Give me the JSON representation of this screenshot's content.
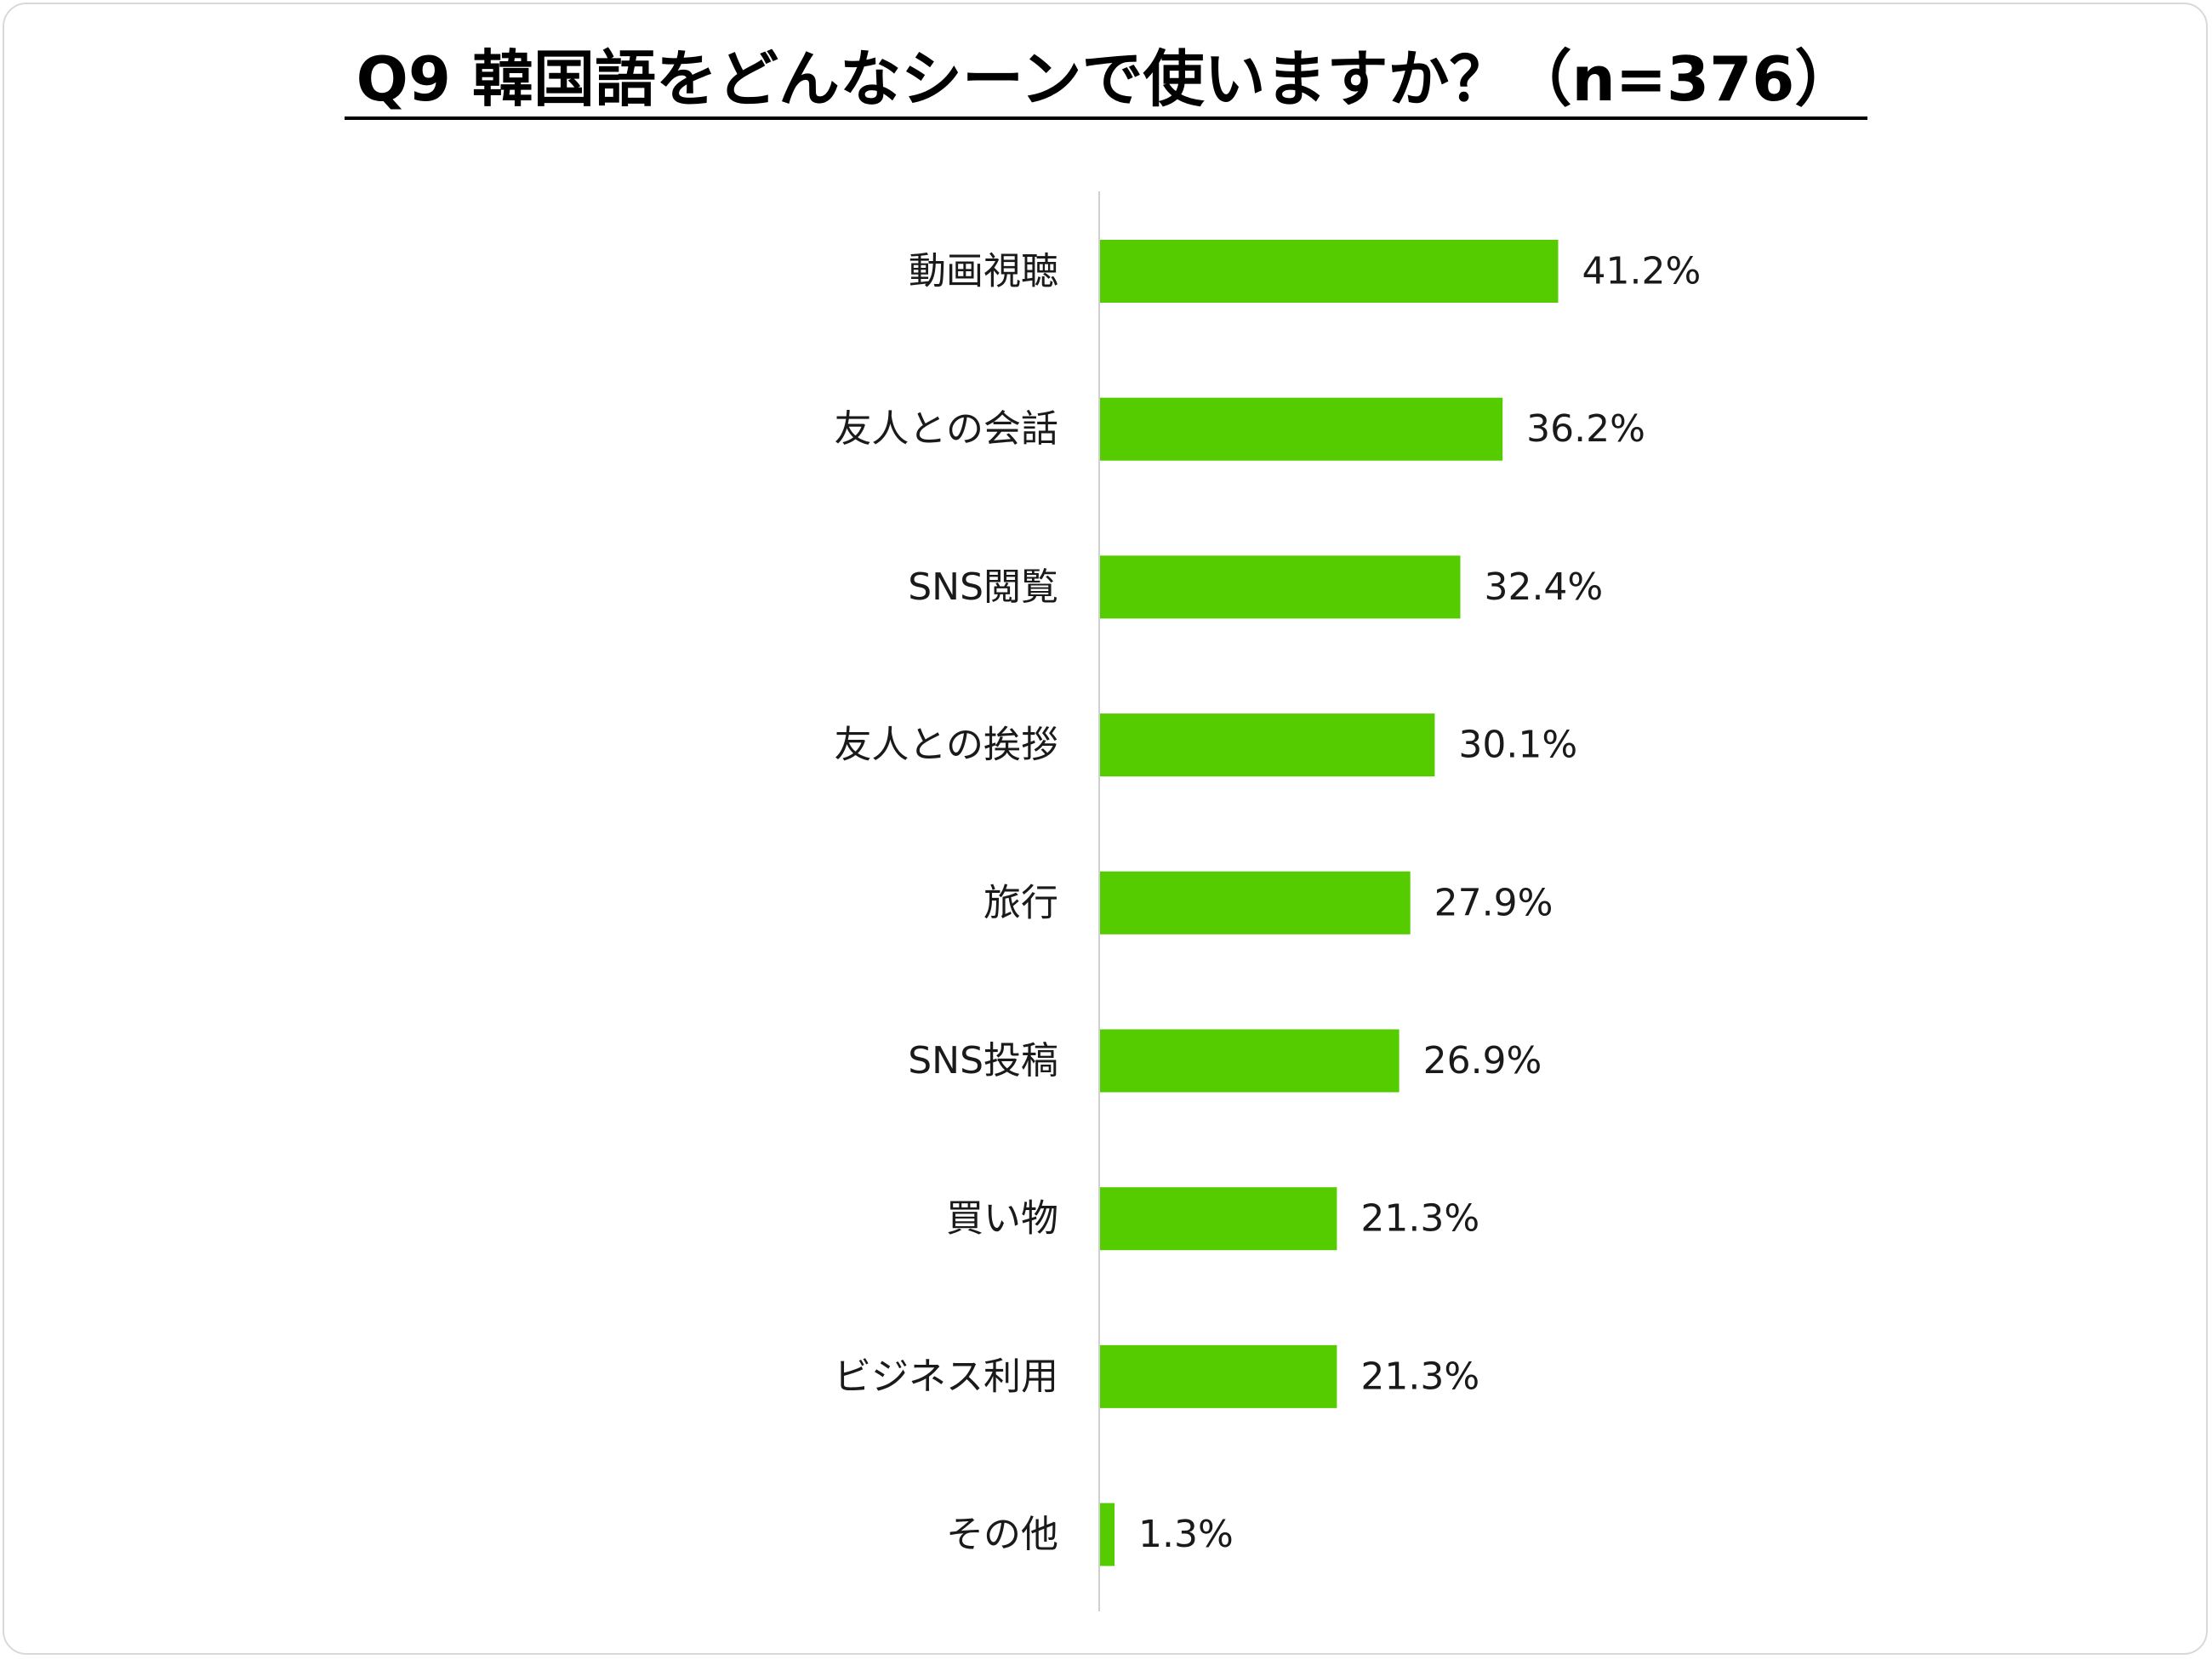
{
  "chart_data": {
    "type": "bar",
    "orientation": "horizontal",
    "title": "Q9 韓国語をどんなシーンで使いますか？（n=376）",
    "categories": [
      "動画視聴",
      "友人との会話",
      "SNS閲覧",
      "友人との挨拶",
      "旅行",
      "SNS投稿",
      "買い物",
      "ビジネス利用",
      "その他"
    ],
    "values": [
      41.2,
      36.2,
      32.4,
      30.1,
      27.9,
      26.9,
      21.3,
      21.3,
      1.3
    ],
    "value_labels": [
      "41.2%",
      "36.2%",
      "32.4%",
      "30.1%",
      "27.9%",
      "26.9%",
      "21.3%",
      "21.3%",
      "1.3%"
    ],
    "unit": "%",
    "xlabel": "",
    "ylabel": "",
    "grid": false,
    "legend": "none",
    "bar_color": "#55cc00",
    "axis_color": "#d0d0d0"
  }
}
